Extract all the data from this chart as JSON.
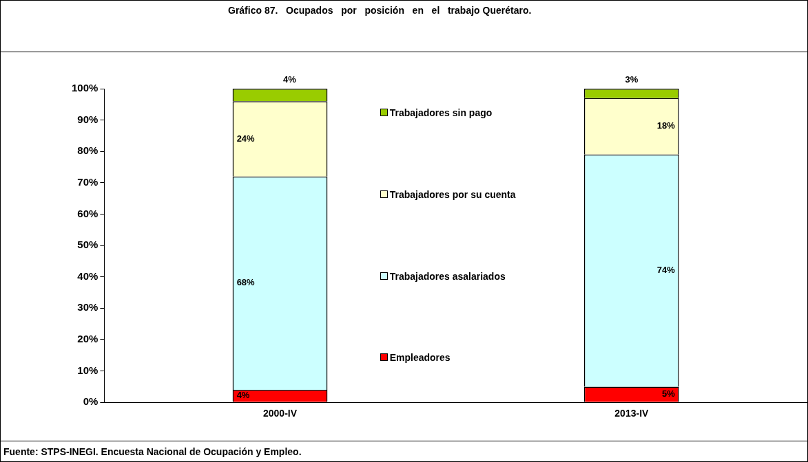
{
  "chart_data": {
    "type": "bar",
    "title": "Gráfico 87.   Ocupados   por   posición   en   el   trabajo Querétaro.",
    "categories": [
      "2000-IV",
      "2013-IV"
    ],
    "stacked": true,
    "series": [
      {
        "name": "Empleadores",
        "color": "#ff0000",
        "values": [
          4,
          5
        ],
        "value_labels": [
          "4%",
          "5%"
        ]
      },
      {
        "name": "Trabajadores asalariados",
        "color": "#ccffff",
        "values": [
          68,
          74
        ],
        "value_labels": [
          "68%",
          "74%"
        ]
      },
      {
        "name": "Trabajadores por su cuenta",
        "color": "#ffffcc",
        "values": [
          24,
          18
        ],
        "value_labels": [
          "24%",
          "18%"
        ]
      },
      {
        "name": "Trabajadores sin pago",
        "color": "#99cc00",
        "values": [
          4,
          3
        ],
        "value_labels": [
          "4%",
          "3%"
        ]
      }
    ],
    "ylim": [
      0,
      100
    ],
    "yticks": [
      {
        "value": 0,
        "label": "0%"
      },
      {
        "value": 10,
        "label": "10%"
      },
      {
        "value": 20,
        "label": "20%"
      },
      {
        "value": 30,
        "label": "30%"
      },
      {
        "value": 40,
        "label": "40%"
      },
      {
        "value": 50,
        "label": "50%"
      },
      {
        "value": 60,
        "label": "60%"
      },
      {
        "value": 70,
        "label": "70%"
      },
      {
        "value": 80,
        "label": "80%"
      },
      {
        "value": 90,
        "label": "90%"
      },
      {
        "value": 100,
        "label": "100%"
      }
    ],
    "grid": false,
    "legend": "center",
    "annotations": [
      "Fuente: STPS-INEGI. Encuesta Nacional de Ocupación y Empleo."
    ]
  }
}
